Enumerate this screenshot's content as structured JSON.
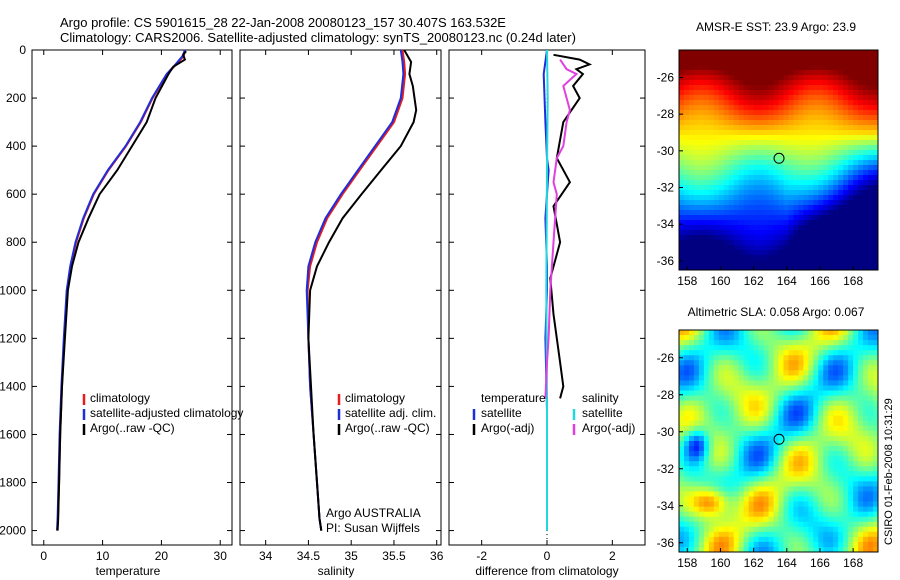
{
  "title": {
    "line1": "Argo profile: CS 5901615_28 22-Jan-2008 20080123_157 30.407S 163.532E",
    "line2": "Climatology: CARS2006. Satellite-adjusted climatology: synTS_20080123.nc (0.24d later)"
  },
  "side_stamp": "CSIRO 01-Feb-2008 10:31:29",
  "colors": {
    "clim": "#e81c1c",
    "sat": "#1f2ddb",
    "argo": "#000000",
    "sal_sat": "#22d8e0",
    "sal_argo": "#e040e0"
  },
  "chart_data": [
    {
      "type": "line",
      "id": "temperature",
      "xlabel": "temperature",
      "ylabel": "",
      "xlim": [
        -2,
        32
      ],
      "ylim": [
        2060,
        0
      ],
      "xticks": [
        0,
        10,
        20,
        30
      ],
      "yticks": [
        0,
        200,
        400,
        600,
        800,
        1000,
        1200,
        1400,
        1600,
        1800,
        2000
      ],
      "legend": [
        "climatology",
        "satellite-adjusted climatology",
        "Argo(..raw -QC)"
      ],
      "series": [
        {
          "name": "climatology",
          "color_key": "clim",
          "x": [
            24.0,
            23.8,
            22.5,
            21.0,
            18.5,
            16.5,
            14.0,
            11.0,
            8.5,
            6.8,
            5.5,
            4.6,
            4.0,
            3.5,
            3.1,
            2.8,
            2.6,
            2.4,
            2.3
          ],
          "y": [
            0,
            25,
            60,
            100,
            200,
            300,
            400,
            500,
            600,
            700,
            800,
            900,
            1000,
            1200,
            1400,
            1600,
            1800,
            1950,
            2000
          ]
        },
        {
          "name": "satellite-adjusted climatology",
          "color_key": "sat",
          "x": [
            24.0,
            23.6,
            22.4,
            20.9,
            18.4,
            16.4,
            13.9,
            10.9,
            8.4,
            6.7,
            5.4,
            4.5,
            3.9,
            3.4,
            3.0,
            2.7,
            2.5,
            2.35,
            2.25
          ],
          "y": [
            0,
            25,
            60,
            100,
            200,
            300,
            400,
            500,
            600,
            700,
            800,
            900,
            1000,
            1200,
            1400,
            1600,
            1800,
            1950,
            2000
          ]
        },
        {
          "name": "Argo(..raw -QC)",
          "color_key": "argo",
          "x": [
            24.2,
            23.7,
            24.0,
            22.0,
            21.2,
            19.0,
            17.5,
            15.0,
            12.5,
            9.5,
            7.6,
            5.9,
            4.8,
            4.1,
            3.6,
            3.1,
            2.8,
            2.6,
            2.45,
            2.35
          ],
          "y": [
            5,
            20,
            40,
            70,
            100,
            200,
            300,
            400,
            500,
            600,
            700,
            800,
            900,
            1000,
            1200,
            1400,
            1600,
            1800,
            1950,
            2000
          ]
        }
      ]
    },
    {
      "type": "line",
      "id": "salinity",
      "xlabel": "salinity",
      "xlim": [
        33.7,
        36.05
      ],
      "ylim": [
        2060,
        0
      ],
      "xticks": [
        34,
        34.5,
        35,
        35.5,
        36
      ],
      "legend": [
        "climatology",
        "satellite adj. clim.",
        "Argo(..raw -QC)"
      ],
      "footer_lines": [
        "Argo AUSTRALIA",
        "PI: Susan Wijffels"
      ],
      "series": [
        {
          "name": "climatology",
          "color_key": "clim",
          "x": [
            35.6,
            35.62,
            35.63,
            35.6,
            35.5,
            35.3,
            35.1,
            34.9,
            34.72,
            34.6,
            34.52,
            34.49,
            34.5,
            34.52,
            34.56,
            34.6,
            34.63,
            34.65
          ],
          "y": [
            0,
            50,
            100,
            200,
            300,
            400,
            500,
            600,
            700,
            800,
            900,
            1000,
            1200,
            1400,
            1600,
            1800,
            1950,
            2000
          ]
        },
        {
          "name": "satellite adj. clim.",
          "color_key": "sat",
          "x": [
            35.58,
            35.6,
            35.61,
            35.58,
            35.48,
            35.28,
            35.08,
            34.88,
            34.7,
            34.58,
            34.5,
            34.48,
            34.5,
            34.52,
            34.56,
            34.6,
            34.63,
            34.65
          ],
          "y": [
            0,
            50,
            100,
            200,
            300,
            400,
            500,
            600,
            700,
            800,
            900,
            1000,
            1200,
            1400,
            1600,
            1800,
            1950,
            2000
          ]
        },
        {
          "name": "Argo(..raw -QC)",
          "color_key": "argo",
          "x": [
            35.62,
            35.7,
            35.68,
            35.72,
            35.76,
            35.73,
            35.58,
            35.35,
            35.12,
            34.9,
            34.74,
            34.6,
            34.52,
            34.5,
            34.53,
            34.56,
            34.6,
            34.63,
            34.65
          ],
          "y": [
            0,
            50,
            100,
            150,
            250,
            300,
            400,
            500,
            600,
            700,
            800,
            900,
            1000,
            1200,
            1400,
            1600,
            1800,
            1950,
            2000
          ]
        }
      ]
    },
    {
      "type": "line",
      "id": "difference",
      "xlabel": "difference from climatology",
      "xlim": [
        -3,
        3
      ],
      "ylim": [
        2060,
        0
      ],
      "xticks": [
        -2,
        0,
        2
      ],
      "legend_left_title": "temperature",
      "legend_right_title": "salinity",
      "legend_left": [
        "satellite",
        "Argo(-adj)"
      ],
      "legend_right": [
        "satellite",
        "Argo(-adj)"
      ],
      "series": [
        {
          "name": "temperature satellite",
          "color_key": "sat",
          "x": [
            0.0,
            -0.1,
            -0.05,
            0,
            0.05,
            -0.05,
            0,
            0,
            -0.05,
            0,
            0
          ],
          "y": [
            0,
            100,
            300,
            450,
            500,
            700,
            900,
            1000,
            1200,
            1500,
            2000
          ]
        },
        {
          "name": "temperature Argo(-adj)",
          "color_key": "argo",
          "x": [
            0.2,
            1.0,
            1.3,
            0.9,
            1.1,
            0.8,
            1.0,
            0.5,
            0.3,
            0.7,
            0.2,
            0.4,
            0.1,
            0.2,
            0.3,
            0.4,
            0.5,
            0.4
          ],
          "y": [
            20,
            40,
            60,
            80,
            100,
            150,
            200,
            300,
            450,
            550,
            650,
            800,
            950,
            1100,
            1200,
            1300,
            1400,
            1450
          ]
        },
        {
          "name": "salinity satellite",
          "color_key": "sal_sat",
          "x": [
            0.0,
            0.02,
            0.0,
            -0.02,
            0.0,
            0.0,
            0.0
          ],
          "y": [
            0,
            200,
            500,
            1000,
            1500,
            1800,
            2000
          ]
        },
        {
          "name": "salinity Argo(-adj)",
          "color_key": "sal_argo",
          "x": [
            0.4,
            0.6,
            0.9,
            0.5,
            0.7,
            0.6,
            0.5,
            0.3,
            0.2,
            0.3,
            0.2,
            0.1,
            0.05,
            0.0,
            -0.05
          ],
          "y": [
            40,
            80,
            100,
            150,
            250,
            300,
            400,
            450,
            550,
            600,
            800,
            1000,
            1200,
            1300,
            1450
          ]
        }
      ]
    },
    {
      "type": "heatmap",
      "id": "sst",
      "title": "AMSR-E SST: 23.9  Argo: 23.9",
      "xlim": [
        157.5,
        169.5
      ],
      "ylim": [
        -36.5,
        -24.5
      ],
      "xticks": [
        158,
        160,
        162,
        164,
        166,
        168
      ],
      "yticks": [
        -26,
        -28,
        -30,
        -32,
        -34,
        -36
      ],
      "marker": {
        "lon": 163.532,
        "lat": -30.407
      },
      "cells_description": "warm orange/yellow north, green centre, blue south-east"
    },
    {
      "type": "heatmap",
      "id": "sla",
      "title": "Altimetric SLA: 0.058  Argo: 0.067",
      "xlim": [
        157.5,
        169.5
      ],
      "ylim": [
        -36.5,
        -24.5
      ],
      "xticks": [
        158,
        160,
        162,
        164,
        166,
        168
      ],
      "yticks": [
        -26,
        -28,
        -30,
        -32,
        -34,
        -36
      ],
      "marker": {
        "lon": 163.532,
        "lat": -30.407
      }
    }
  ]
}
